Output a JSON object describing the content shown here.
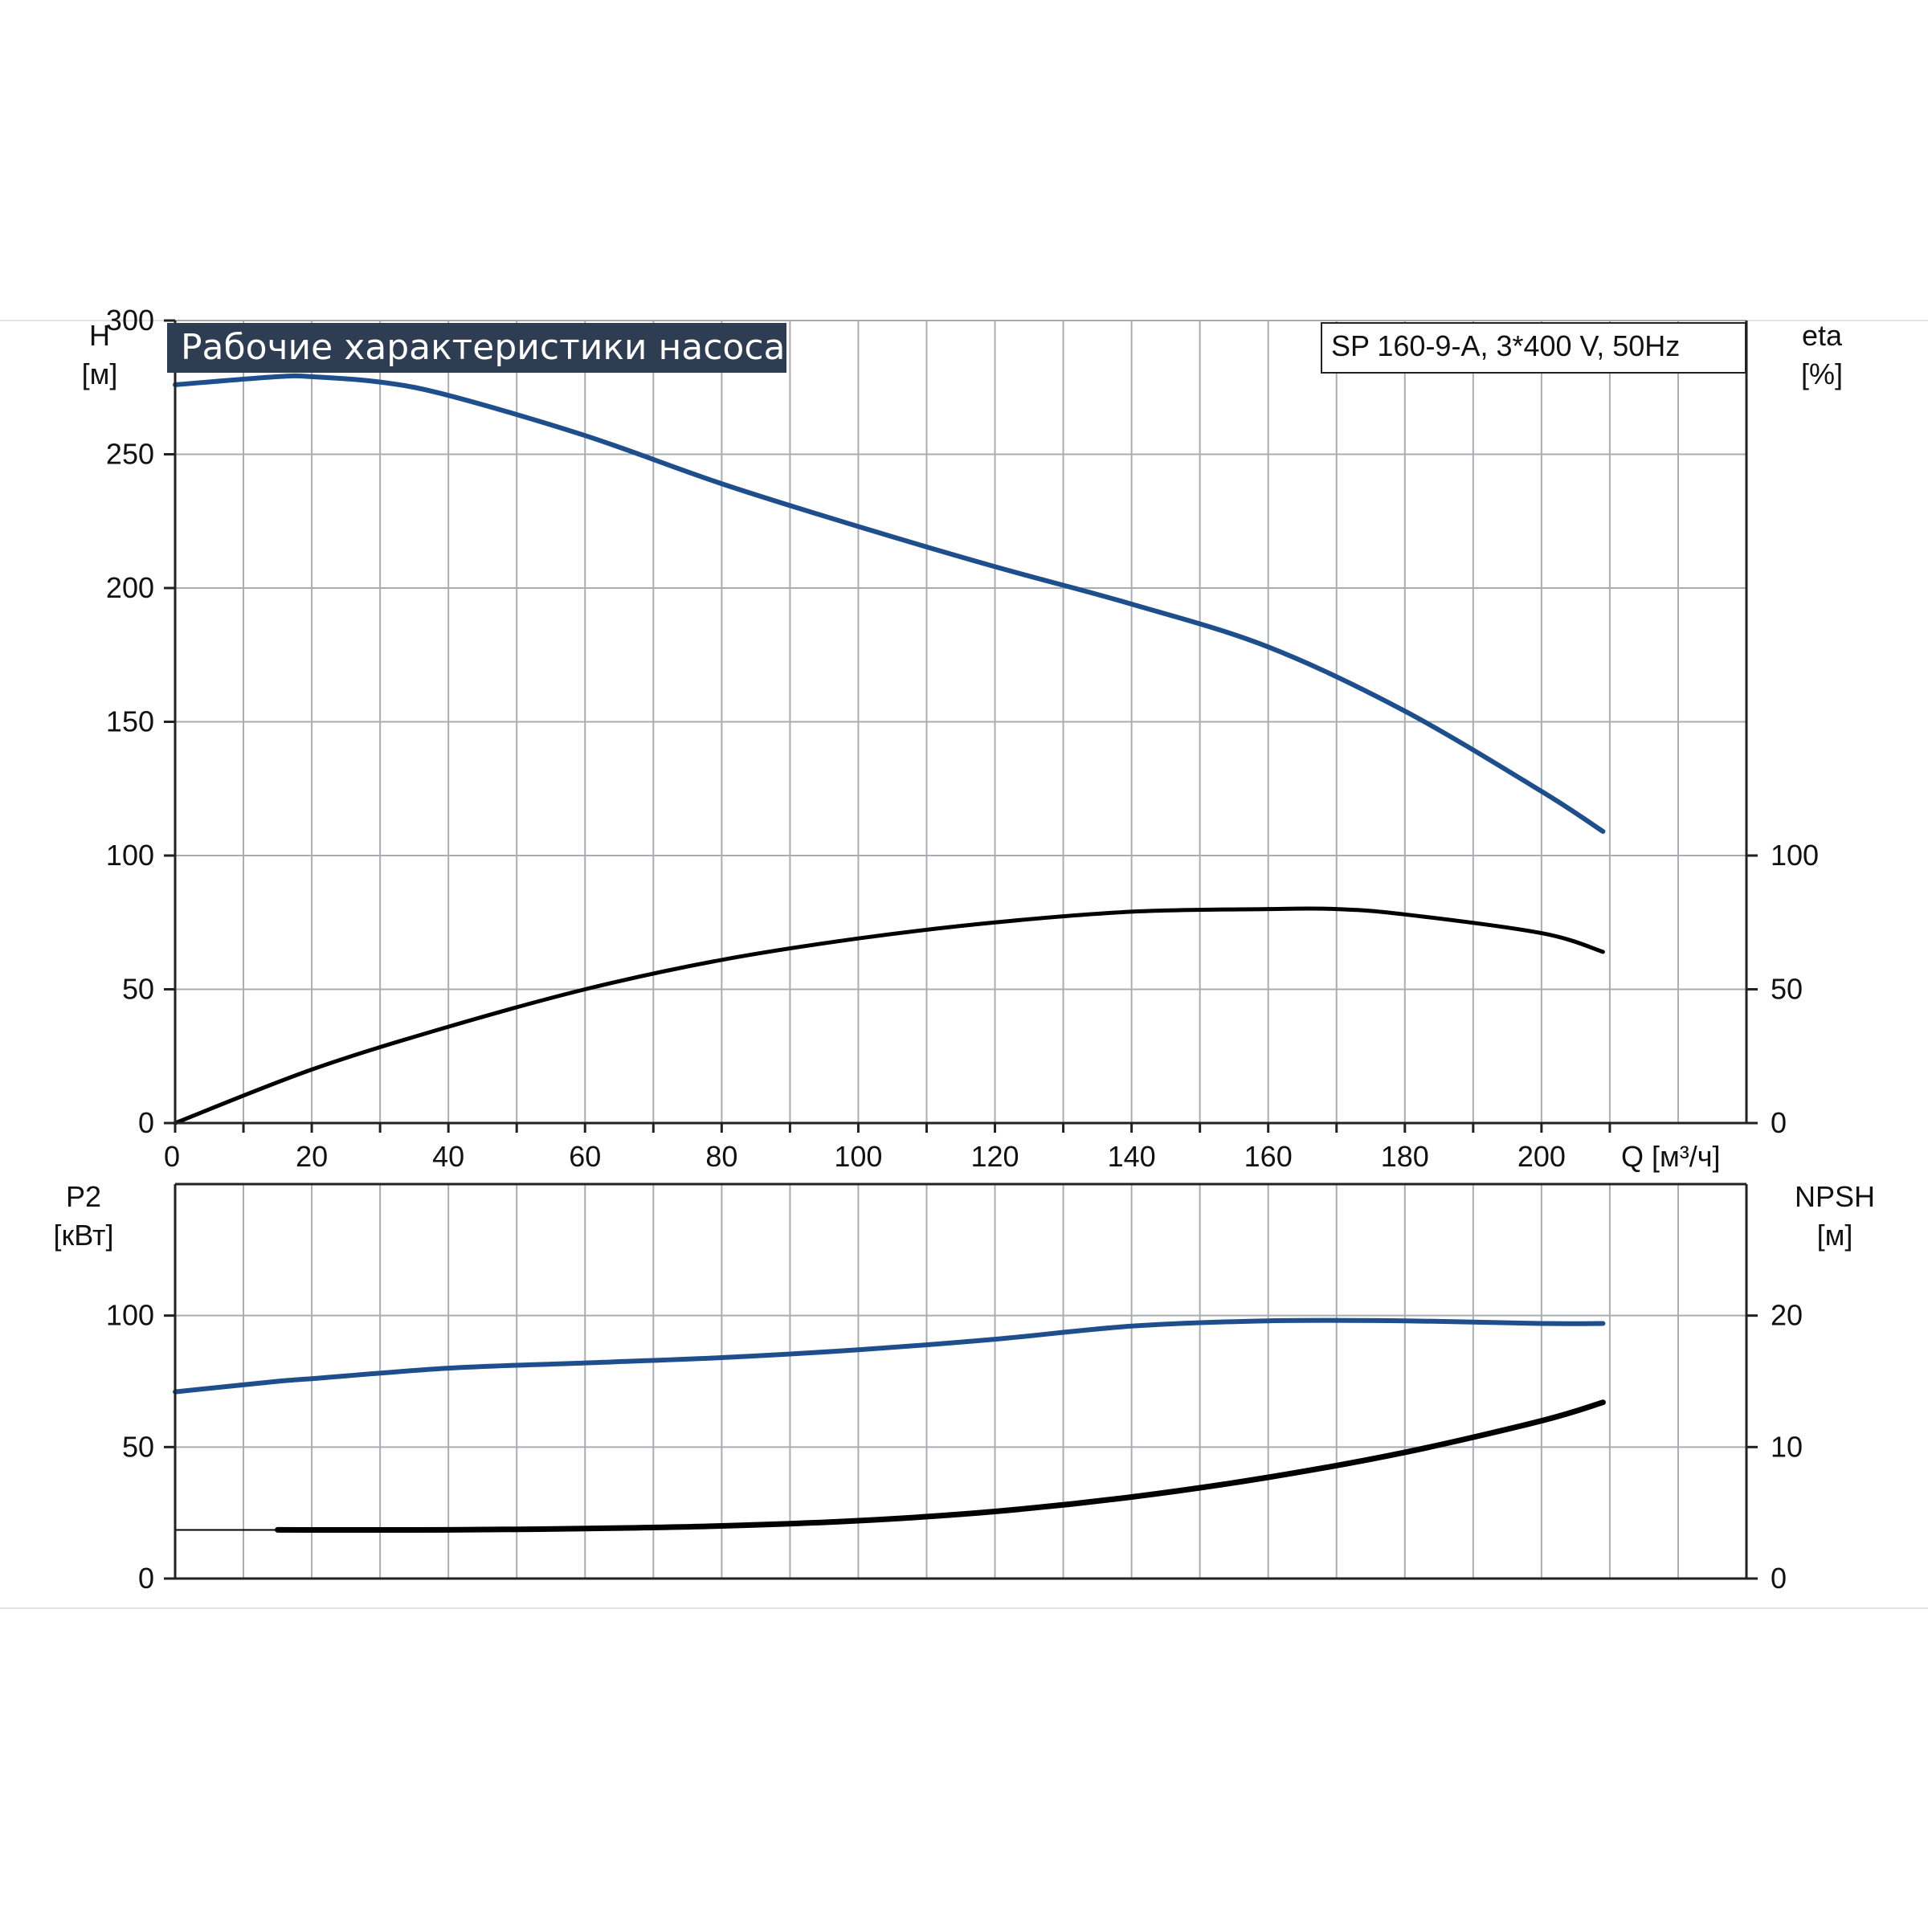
{
  "title": "Рабочие характеристики насоса",
  "model": "SP 160-9-A, 3*400 V, 50Hz",
  "colors": {
    "pump_blue": "#1f4e8c",
    "black": "#000000",
    "title_bg": "#2e3d52",
    "grid": "#a9adb3"
  },
  "chart_data": [
    {
      "type": "line",
      "panel": "top",
      "x_axis": {
        "label": "Q [м³/ч]",
        "ticks": [
          "0",
          "20",
          "40",
          "60",
          "80",
          "100",
          "120",
          "140",
          "160",
          "180",
          "200"
        ],
        "range": [
          0,
          230
        ]
      },
      "y_left": {
        "label_line1": "H",
        "label_line2": "[м]",
        "ticks": [
          "0",
          "50",
          "100",
          "150",
          "200",
          "250",
          "300"
        ],
        "range": [
          0,
          300
        ]
      },
      "y_right": {
        "label_line1": "eta",
        "label_line2": "[%]",
        "ticks": [
          "0",
          "50",
          "100"
        ],
        "range": [
          0,
          300
        ]
      },
      "grid": true,
      "series": [
        {
          "id": "H",
          "axis": "left",
          "color": "#1f4e8c",
          "x": [
            0,
            15,
            20,
            30,
            40,
            60,
            80,
            100,
            120,
            140,
            160,
            180,
            200,
            209
          ],
          "y": [
            276,
            279,
            279,
            277,
            272,
            257,
            239,
            223,
            208,
            194,
            178,
            154,
            124,
            109
          ]
        },
        {
          "id": "eta",
          "axis": "right",
          "color": "#000000",
          "x": [
            0,
            20,
            40,
            60,
            80,
            100,
            120,
            140,
            160,
            170,
            180,
            200,
            209
          ],
          "y": [
            0,
            20,
            36,
            50,
            61,
            69,
            75,
            79,
            80,
            80,
            78,
            71,
            64
          ]
        }
      ]
    },
    {
      "type": "line",
      "panel": "bottom",
      "x_axis": {
        "range": [
          0,
          230
        ]
      },
      "y_left": {
        "label_line1": "P2",
        "label_line2": "[кВт]",
        "ticks": [
          "0",
          "50",
          "100"
        ],
        "range": [
          0,
          150
        ]
      },
      "y_right": {
        "label_line1": "NPSH",
        "label_line2": "[м]",
        "ticks": [
          "0",
          "10",
          "20"
        ],
        "range": [
          0,
          30
        ]
      },
      "grid": true,
      "series": [
        {
          "id": "P2",
          "axis": "left",
          "color": "#1f4e8c",
          "x": [
            0,
            15,
            20,
            40,
            60,
            80,
            100,
            120,
            140,
            160,
            180,
            200,
            209
          ],
          "y": [
            71,
            75,
            76,
            80,
            82,
            84,
            87,
            91,
            96,
            98,
            98,
            97,
            97
          ]
        },
        {
          "id": "NPSH",
          "axis": "right",
          "color": "#000000",
          "x": [
            15,
            40,
            60,
            80,
            100,
            120,
            140,
            160,
            180,
            200,
            209
          ],
          "y": [
            3.7,
            3.7,
            3.8,
            4.0,
            4.4,
            5.1,
            6.2,
            7.7,
            9.6,
            12.0,
            13.4
          ]
        }
      ]
    }
  ]
}
